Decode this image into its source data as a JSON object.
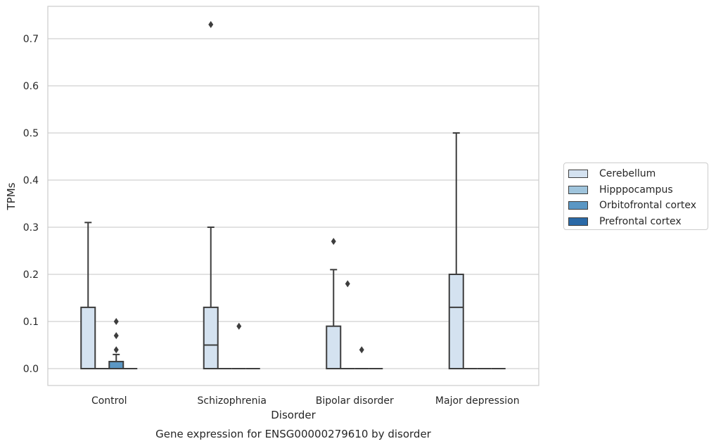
{
  "chart_data": {
    "type": "box",
    "title": "Gene expression for ENSG00000279610 by disorder",
    "xlabel": "Disorder",
    "ylabel": "TPMs",
    "ylim": [
      -0.035,
      0.77
    ],
    "yticks": [
      0.0,
      0.1,
      0.2,
      0.3,
      0.4,
      0.5,
      0.6,
      0.7
    ],
    "ytick_labels": [
      "0.0",
      "0.1",
      "0.2",
      "0.3",
      "0.4",
      "0.5",
      "0.6",
      "0.7"
    ],
    "categories": [
      "Control",
      "Schizophrenia",
      "Bipolar disorder",
      "Major depression"
    ],
    "grid": "horizontal",
    "legend_position": "right",
    "series": [
      {
        "name": "Cerebellum",
        "color": "#d4e2f0",
        "boxes": [
          {
            "q1": 0.0,
            "median": 0.0,
            "q3": 0.13,
            "whisker_low": 0.0,
            "whisker_high": 0.31,
            "outliers": []
          },
          {
            "q1": 0.0,
            "median": 0.05,
            "q3": 0.13,
            "whisker_low": 0.0,
            "whisker_high": 0.3,
            "outliers": [
              0.73
            ]
          },
          {
            "q1": 0.0,
            "median": 0.0,
            "q3": 0.09,
            "whisker_low": 0.0,
            "whisker_high": 0.21,
            "outliers": [
              0.27
            ]
          },
          {
            "q1": 0.0,
            "median": 0.13,
            "q3": 0.2,
            "whisker_low": 0.0,
            "whisker_high": 0.5,
            "outliers": []
          }
        ]
      },
      {
        "name": "Hipppocampus",
        "color": "#9fc4dc",
        "boxes": [
          {
            "q1": 0.0,
            "median": 0.0,
            "q3": 0.0,
            "whisker_low": 0.0,
            "whisker_high": 0.0,
            "outliers": []
          },
          {
            "q1": 0.0,
            "median": 0.0,
            "q3": 0.0,
            "whisker_low": 0.0,
            "whisker_high": 0.0,
            "outliers": []
          },
          {
            "q1": 0.0,
            "median": 0.0,
            "q3": 0.0,
            "whisker_low": 0.0,
            "whisker_high": 0.0,
            "outliers": [
              0.18
            ]
          },
          {
            "q1": 0.0,
            "median": 0.0,
            "q3": 0.0,
            "whisker_low": 0.0,
            "whisker_high": 0.0,
            "outliers": []
          }
        ]
      },
      {
        "name": "Orbitofrontal cortex",
        "color": "#5b97c4",
        "boxes": [
          {
            "q1": 0.0,
            "median": 0.0,
            "q3": 0.015,
            "whisker_low": 0.0,
            "whisker_high": 0.03,
            "outliers": [
              0.04,
              0.07,
              0.1
            ]
          },
          {
            "q1": 0.0,
            "median": 0.0,
            "q3": 0.0,
            "whisker_low": 0.0,
            "whisker_high": 0.0,
            "outliers": [
              0.09
            ]
          },
          {
            "q1": 0.0,
            "median": 0.0,
            "q3": 0.0,
            "whisker_low": 0.0,
            "whisker_high": 0.0,
            "outliers": [
              0.04
            ]
          },
          {
            "q1": 0.0,
            "median": 0.0,
            "q3": 0.0,
            "whisker_low": 0.0,
            "whisker_high": 0.0,
            "outliers": []
          }
        ]
      },
      {
        "name": "Prefrontal cortex",
        "color": "#2a69a7",
        "boxes": [
          {
            "q1": 0.0,
            "median": 0.0,
            "q3": 0.0,
            "whisker_low": 0.0,
            "whisker_high": 0.0,
            "outliers": []
          },
          {
            "q1": 0.0,
            "median": 0.0,
            "q3": 0.0,
            "whisker_low": 0.0,
            "whisker_high": 0.0,
            "outliers": []
          },
          {
            "q1": 0.0,
            "median": 0.0,
            "q3": 0.0,
            "whisker_low": 0.0,
            "whisker_high": 0.0,
            "outliers": []
          },
          {
            "q1": 0.0,
            "median": 0.0,
            "q3": 0.0,
            "whisker_low": 0.0,
            "whisker_high": 0.0,
            "outliers": []
          }
        ]
      }
    ]
  }
}
